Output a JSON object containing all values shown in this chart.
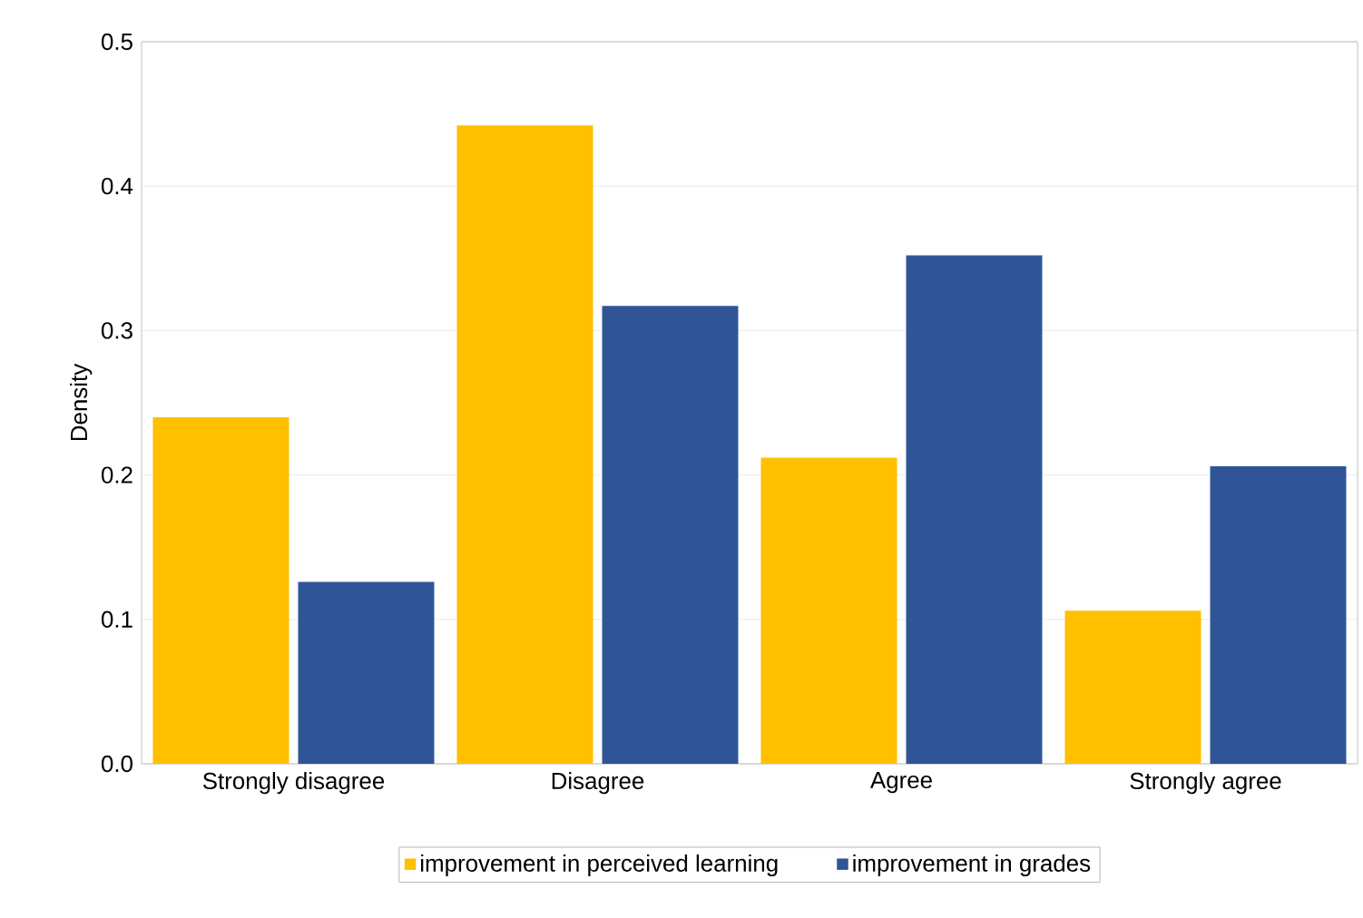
{
  "chart_data": {
    "type": "bar",
    "ylabel": "Density",
    "categories": [
      "Strongly disagree",
      "Disagree",
      "Agree",
      "Strongly agree"
    ],
    "series": [
      {
        "name": "improvement in perceived learning",
        "color": "#ffc000",
        "values": [
          0.24,
          0.442,
          0.212,
          0.106
        ]
      },
      {
        "name": "improvement in grades",
        "color": "#2f5597",
        "values": [
          0.126,
          0.317,
          0.352,
          0.206
        ]
      }
    ],
    "ylim": [
      0,
      0.5
    ],
    "yticks": [
      {
        "value": 0,
        "label": "0.0"
      },
      {
        "value": 0.1,
        "label": "0.1"
      },
      {
        "value": 0.2,
        "label": "0.2"
      },
      {
        "value": 0.3,
        "label": "0.3"
      },
      {
        "value": 0.4,
        "label": "0.4"
      },
      {
        "value": 0.5,
        "label": "0.5"
      }
    ],
    "grid": "y",
    "legend": "bottom"
  }
}
